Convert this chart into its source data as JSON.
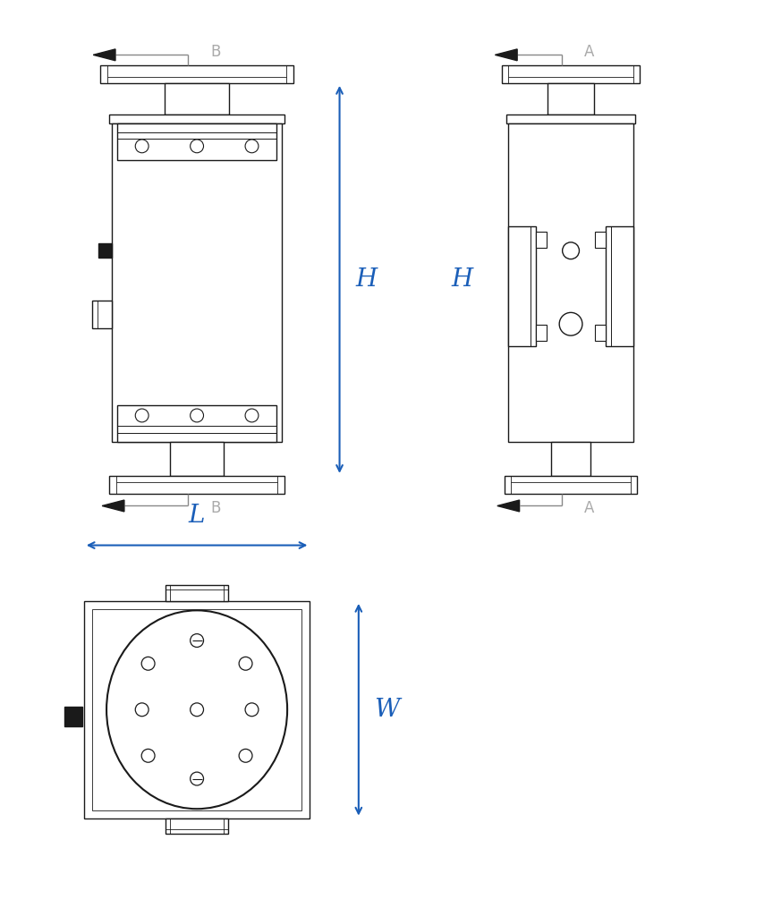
{
  "bg_color": "#ffffff",
  "line_color": "#1a1a1a",
  "blue_color": "#1a5eb8",
  "gray_color": "#aaaaaa",
  "label_H": "H",
  "label_L": "L",
  "label_W": "W",
  "label_A": "A",
  "label_B": "B",
  "figw": 8.73,
  "figh": 10.24,
  "dpi": 100
}
